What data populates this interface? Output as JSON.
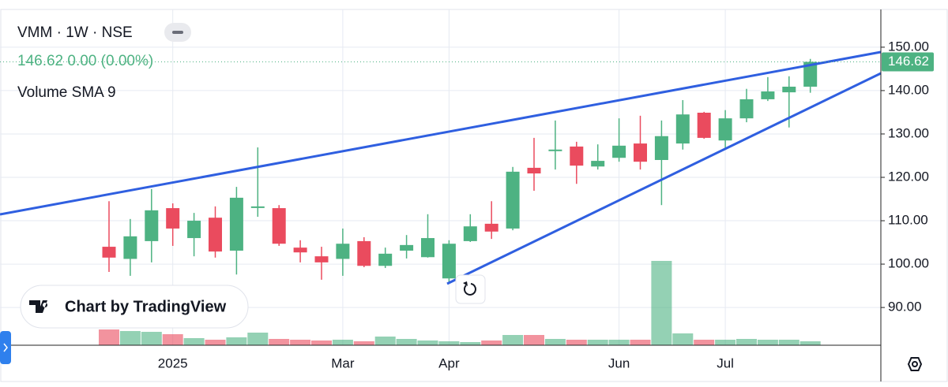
{
  "chart_data": {
    "type": "candlestick",
    "title": "VMM · 1W · NSE",
    "quote": "146.62 0.00 (0.00%)",
    "indicator": "Volume SMA 9",
    "watermark": "Chart by TradingView",
    "categories": [
      null,
      null,
      null,
      "2025",
      null,
      null,
      null,
      null,
      null,
      null,
      null,
      "Mar",
      null,
      null,
      null,
      null,
      "Apr",
      null,
      null,
      null,
      null,
      null,
      null,
      null,
      "Jun",
      null,
      null,
      null,
      null,
      "Jul",
      null,
      null,
      null,
      null
    ],
    "open": [
      104.0,
      101.2,
      105.3,
      112.9,
      106.0,
      110.7,
      103.1,
      113.2,
      112.9,
      103.8,
      101.8,
      101.2,
      105.3,
      99.6,
      103.1,
      101.6,
      96.7,
      105.3,
      109.3,
      108.2,
      122.2,
      126.3,
      127.1,
      122.5,
      124.5,
      127.8,
      124.0,
      127.8,
      134.9,
      128.5,
      133.6,
      138.0,
      139.6,
      140.9
    ],
    "high": [
      114.5,
      110.4,
      117.3,
      114.0,
      111.8,
      113.3,
      117.8,
      126.9,
      113.6,
      105.5,
      104.0,
      108.2,
      106.2,
      103.8,
      106.7,
      111.5,
      105.5,
      111.5,
      114.5,
      122.4,
      129.1,
      133.1,
      128.2,
      127.6,
      133.6,
      134.2,
      133.1,
      137.8,
      135.1,
      135.5,
      140.4,
      143.1,
      143.3,
      147.3
    ],
    "low": [
      98.2,
      97.3,
      100.4,
      104.2,
      101.8,
      101.5,
      97.6,
      110.9,
      104.2,
      100.4,
      96.4,
      97.3,
      99.3,
      99.1,
      101.3,
      101.5,
      95.8,
      105.1,
      105.8,
      107.8,
      116.9,
      121.8,
      118.5,
      121.8,
      123.6,
      121.8,
      113.6,
      126.4,
      128.9,
      126.4,
      132.7,
      137.6,
      131.5,
      139.5
    ],
    "close": [
      101.5,
      106.4,
      112.4,
      108.2,
      110.0,
      102.9,
      115.3,
      113.3,
      104.7,
      102.7,
      100.4,
      104.7,
      99.6,
      102.4,
      104.4,
      106.0,
      104.7,
      108.7,
      107.5,
      121.3,
      120.9,
      126.4,
      122.7,
      123.8,
      127.3,
      123.6,
      129.5,
      134.5,
      129.1,
      133.6,
      138.0,
      139.8,
      140.9,
      146.62
    ],
    "volume": [
      20,
      18,
      17,
      14,
      9,
      7,
      10,
      16,
      8,
      7,
      6,
      7,
      5,
      11,
      8,
      6,
      5,
      4,
      6,
      13,
      13,
      8,
      7,
      7,
      7,
      7,
      107,
      15,
      7,
      7,
      8,
      7,
      7,
      5
    ],
    "up_color": "#4db282",
    "down_color": "#ea4b5e",
    "ylim": [
      81.3,
      158.7
    ],
    "yticks": [
      {
        "value": 90,
        "label": "90.00"
      },
      {
        "value": 100,
        "label": "100.00"
      },
      {
        "value": 110,
        "label": "110.00"
      },
      {
        "value": 120,
        "label": "120.00"
      },
      {
        "value": 130,
        "label": "130.00"
      },
      {
        "value": 140,
        "label": "140.00"
      },
      {
        "value": 150,
        "label": "150.00"
      }
    ],
    "grid": true
  }
}
